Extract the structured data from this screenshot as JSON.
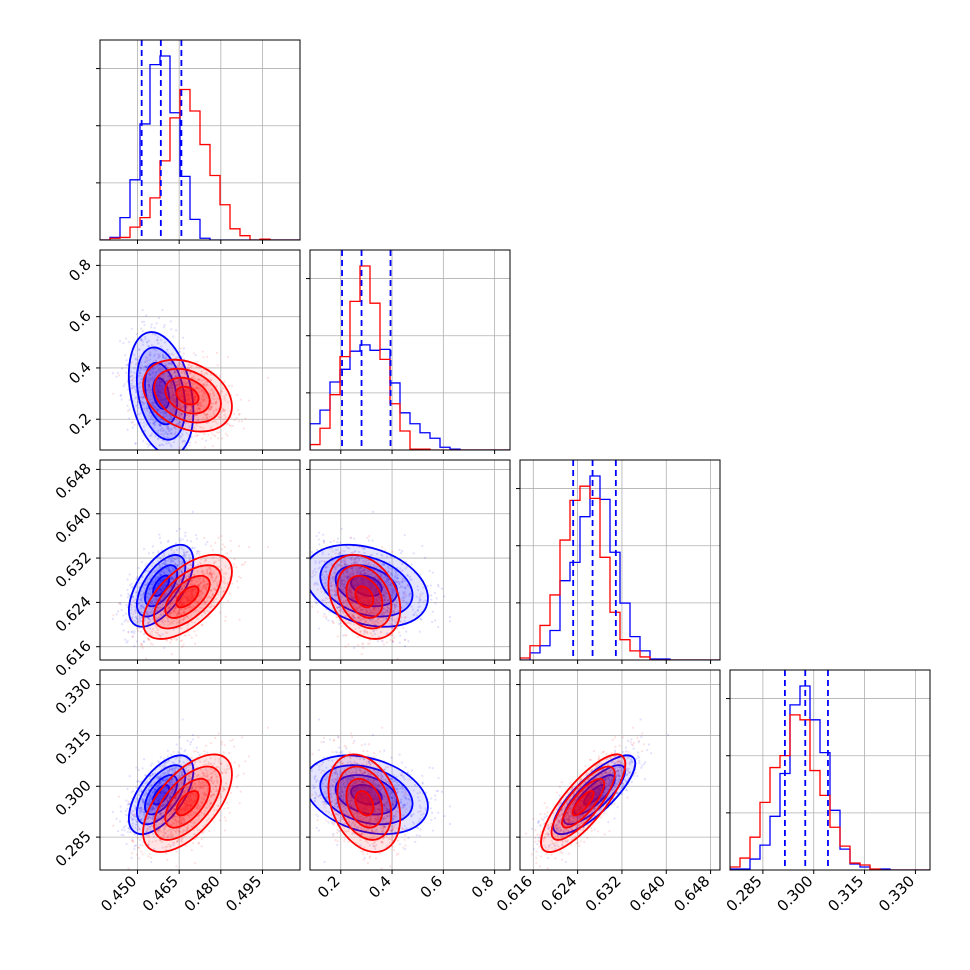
{
  "chart_data": {
    "type": "corner",
    "parameters": [
      {
        "ticks": [
          0.45,
          0.465,
          0.48,
          0.495
        ],
        "tick_labels": [
          "0.450",
          "0.465",
          "0.480",
          "0.495"
        ],
        "range": [
          0.4365,
          0.5085
        ],
        "quantiles": [
          0.4515,
          0.4584,
          0.4658
        ]
      },
      {
        "ticks": [
          0.2,
          0.4,
          0.6,
          0.8
        ],
        "tick_labels": [
          "0.2",
          "0.4",
          "0.6",
          "0.8"
        ],
        "range": [
          0.08,
          0.86
        ],
        "quantiles": [
          0.205,
          0.281,
          0.394
        ]
      },
      {
        "ticks": [
          0.616,
          0.624,
          0.632,
          0.64,
          0.648
        ],
        "tick_labels": [
          "0.616",
          "0.624",
          "0.632",
          "0.640",
          "0.648"
        ],
        "range": [
          0.6136,
          0.6497
        ],
        "quantiles": [
          0.6232,
          0.6267,
          0.6309
        ]
      },
      {
        "ticks": [
          0.285,
          0.3,
          0.315,
          0.33
        ],
        "tick_labels": [
          "0.285",
          "0.300",
          "0.315",
          "0.330"
        ],
        "range": [
          0.2753,
          0.3343
        ],
        "quantiles": [
          0.2915,
          0.2975,
          0.3042
        ]
      }
    ],
    "series": [
      {
        "color": "#0000ff",
        "mean": [
          0.4585,
          0.3,
          0.627,
          0.2975
        ],
        "std": [
          0.0058,
          0.12,
          0.0037,
          0.0058
        ]
      },
      {
        "color": "#ff0000",
        "mean": [
          0.468,
          0.292,
          0.625,
          0.295
        ],
        "std": [
          0.008,
          0.07,
          0.0038,
          0.0072
        ]
      }
    ],
    "quantile_line_color": "#0000ff",
    "grid": true
  }
}
